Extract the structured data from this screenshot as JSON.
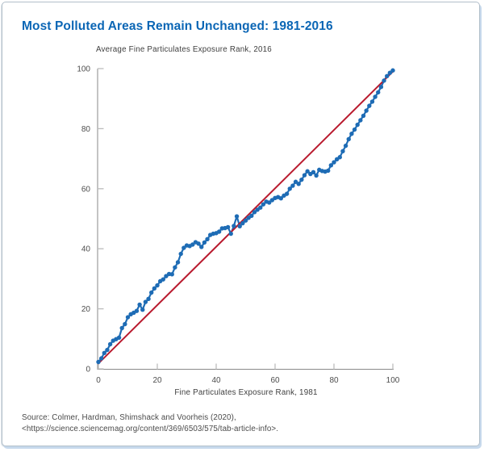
{
  "header": {
    "title": "Most Polluted Areas Remain Unchanged: 1981-2016"
  },
  "footer": {
    "source_line1": "Source: Colmer, Hardman, Shimshack and Voorheis (2020),",
    "source_line2": "<https://science.sciencemag.org/content/369/6503/575/tab-article-info>."
  },
  "colors": {
    "title_blue": "#0b66b5",
    "line_blue": "#1e6cb5",
    "line_red": "#b91a2e",
    "axis_gray": "#8a8a8a",
    "tick_gray": "#bcbcbc",
    "text_gray": "#4d4d4d",
    "border": "#b2bfca"
  },
  "chart_data": {
    "type": "line",
    "title": "Most Polluted Areas Remain Unchanged: 1981-2016",
    "xlabel": "Fine Particulates Exposure Rank, 1981",
    "ylabel": "Average Fine Particulates Exposure Rank, 2016",
    "xlim": [
      0,
      100
    ],
    "ylim": [
      0,
      100
    ],
    "x_ticks": [
      0,
      20,
      40,
      60,
      80,
      100
    ],
    "y_ticks": [
      0,
      20,
      40,
      60,
      80,
      100
    ],
    "grid": false,
    "legend_position": "none",
    "series": [
      {
        "name": "rank-2016-vs-1981",
        "color": "#1e6cb5",
        "width": 2.2,
        "markers": true,
        "x": [
          0,
          1,
          2,
          3,
          4,
          5,
          6,
          7,
          8,
          9,
          10,
          11,
          12,
          13,
          14,
          15,
          16,
          17,
          18,
          19,
          20,
          21,
          22,
          23,
          24,
          25,
          26,
          27,
          28,
          29,
          30,
          31,
          32,
          33,
          34,
          35,
          36,
          37,
          38,
          39,
          40,
          41,
          42,
          43,
          44,
          45,
          46,
          47,
          48,
          49,
          50,
          51,
          52,
          53,
          54,
          55,
          56,
          57,
          58,
          59,
          60,
          61,
          62,
          63,
          64,
          65,
          66,
          67,
          68,
          69,
          70,
          71,
          72,
          73,
          74,
          75,
          76,
          77,
          78,
          79,
          80,
          81,
          82,
          83,
          84,
          85,
          86,
          87,
          88,
          89,
          90,
          91,
          92,
          93,
          94,
          95,
          96,
          97,
          98,
          99,
          100
        ],
        "y": [
          2.3,
          3.5,
          5.3,
          6.3,
          8.2,
          9.4,
          9.9,
          10.4,
          13.6,
          14.9,
          17.2,
          18.2,
          18.7,
          19.3,
          21.4,
          19.7,
          22.3,
          23.3,
          25.4,
          26.8,
          27.8,
          29.2,
          29.8,
          30.9,
          31.6,
          31.5,
          33.8,
          35.5,
          38.3,
          40.3,
          41.1,
          40.9,
          41.4,
          42.2,
          41.7,
          40.6,
          42.1,
          43.2,
          44.6,
          45.0,
          45.2,
          45.7,
          46.8,
          46.9,
          47.2,
          45.0,
          47.6,
          50.8,
          47.5,
          48.5,
          49.4,
          50.3,
          51.0,
          52.2,
          53.0,
          53.7,
          54.8,
          55.7,
          55.4,
          56.2,
          56.9,
          57.2,
          56.8,
          57.7,
          58.3,
          60.0,
          61.0,
          62.3,
          61.6,
          63.0,
          64.5,
          65.8,
          64.9,
          65.5,
          64.4,
          66.3,
          65.9,
          65.7,
          66.0,
          67.8,
          68.8,
          69.8,
          70.5,
          72.5,
          74.3,
          76.5,
          78.3,
          79.7,
          81.3,
          82.8,
          84.3,
          86.0,
          87.6,
          89.0,
          90.6,
          92.1,
          93.9,
          96.0,
          97.5,
          98.6,
          99.4
        ]
      },
      {
        "name": "45-degree-reference",
        "color": "#b91a2e",
        "width": 2,
        "markers": false,
        "x": [
          0,
          100
        ],
        "y": [
          1.8,
          99.0
        ]
      }
    ]
  }
}
